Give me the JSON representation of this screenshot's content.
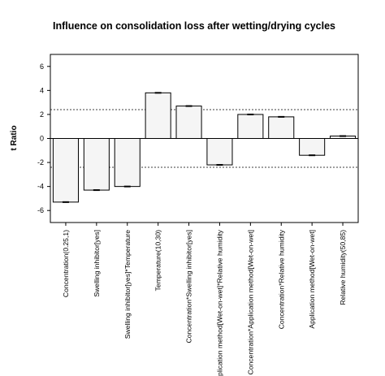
{
  "chart_data": {
    "type": "bar",
    "title": "Influence on consolidation loss after wetting/drying cycles",
    "ylabel": "t Ratio",
    "xlabel": "",
    "ylim": [
      -7,
      7
    ],
    "yticks": [
      6,
      4,
      2,
      0,
      -2,
      -4,
      -6
    ],
    "ytick_labels": [
      "6",
      "4",
      "2",
      "0",
      "-2",
      "-4",
      "-6"
    ],
    "significance_lines": [
      2.4,
      -2.4
    ],
    "grid": false,
    "legend": "none",
    "bar_fill": "#f5f5f5",
    "bar_stroke": "#000000",
    "reference_line_color": "#000000",
    "categories": [
      "Concentration(0.25,1)",
      "Swelling inhibitor[yes]",
      "Swelling inhibitor[yes]*Temperature",
      "Temperature(10,30)",
      "Concentration*Swelling inhibitor[yes]",
      "Application method[Wet-on-wet]*Relative humidity",
      "Concentration*Application method[Wet-on-wet]",
      "Concentration*Relative humidity",
      "Application method[Wet-on-wet]",
      "Relative humidity(50,85)"
    ],
    "values": [
      -5.3,
      -4.3,
      -4.0,
      3.8,
      2.7,
      -2.2,
      2.0,
      1.8,
      -1.4,
      0.2
    ]
  }
}
